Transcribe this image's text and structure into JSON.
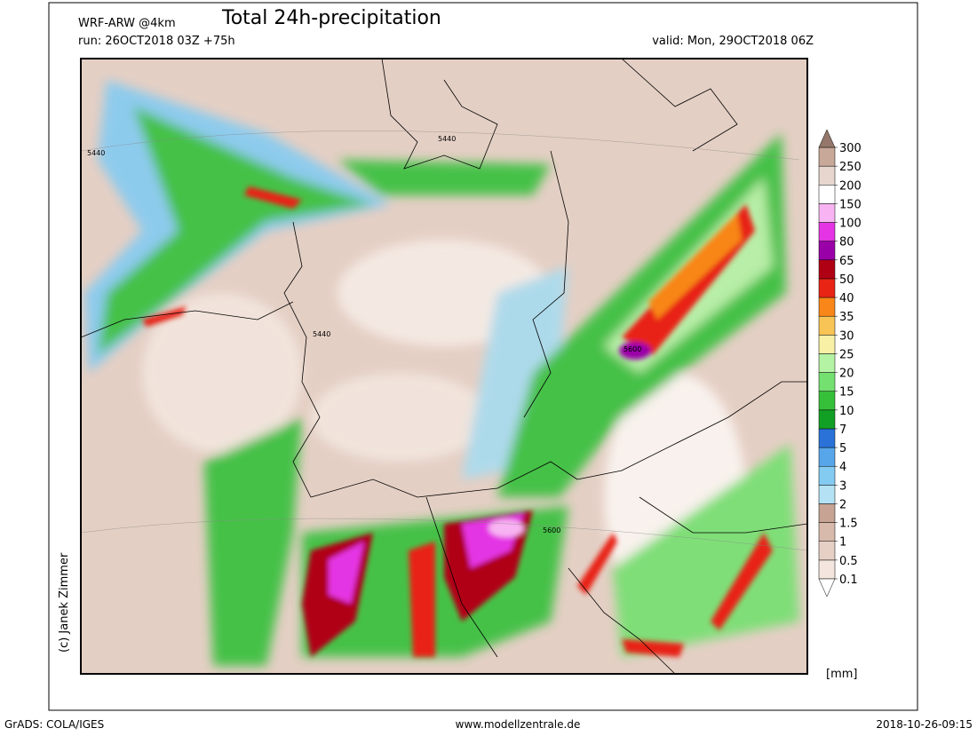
{
  "header": {
    "model": "WRF-ARW @4km",
    "title": "Total 24h-precipitation",
    "run": "run: 26OCT2018 03Z +75h",
    "valid": "valid: Mon, 29OCT2018 06Z"
  },
  "contour_labels": [
    "5440",
    "5440",
    "5440",
    "5600",
    "5600"
  ],
  "copyright": "(c) Janek Zimmer",
  "colorbar": {
    "unit": "[mm]",
    "levels": [
      0.1,
      0.5,
      1,
      1.5,
      2,
      3,
      4,
      5,
      7,
      10,
      15,
      20,
      25,
      30,
      35,
      40,
      50,
      65,
      80,
      100,
      150,
      200,
      250,
      300
    ],
    "colors": [
      "#ffffff",
      "#f4e6df",
      "#e6d0c6",
      "#d8baad",
      "#c6a393",
      "#b4e2f4",
      "#84cbf2",
      "#58a6ea",
      "#2a72d8",
      "#12a024",
      "#36c03a",
      "#74e070",
      "#b4f2a4",
      "#f8f0a4",
      "#f8c456",
      "#f88618",
      "#e82414",
      "#b00014",
      "#9a00a8",
      "#e434e4",
      "#f8b4f2",
      "#ffffff",
      "#e6d6ce",
      "#c8a898",
      "#94776a"
    ]
  },
  "footer": {
    "left": "GrADS: COLA/IGES",
    "center": "www.modellzentrale.de",
    "right": "2018-10-26-09:15"
  }
}
